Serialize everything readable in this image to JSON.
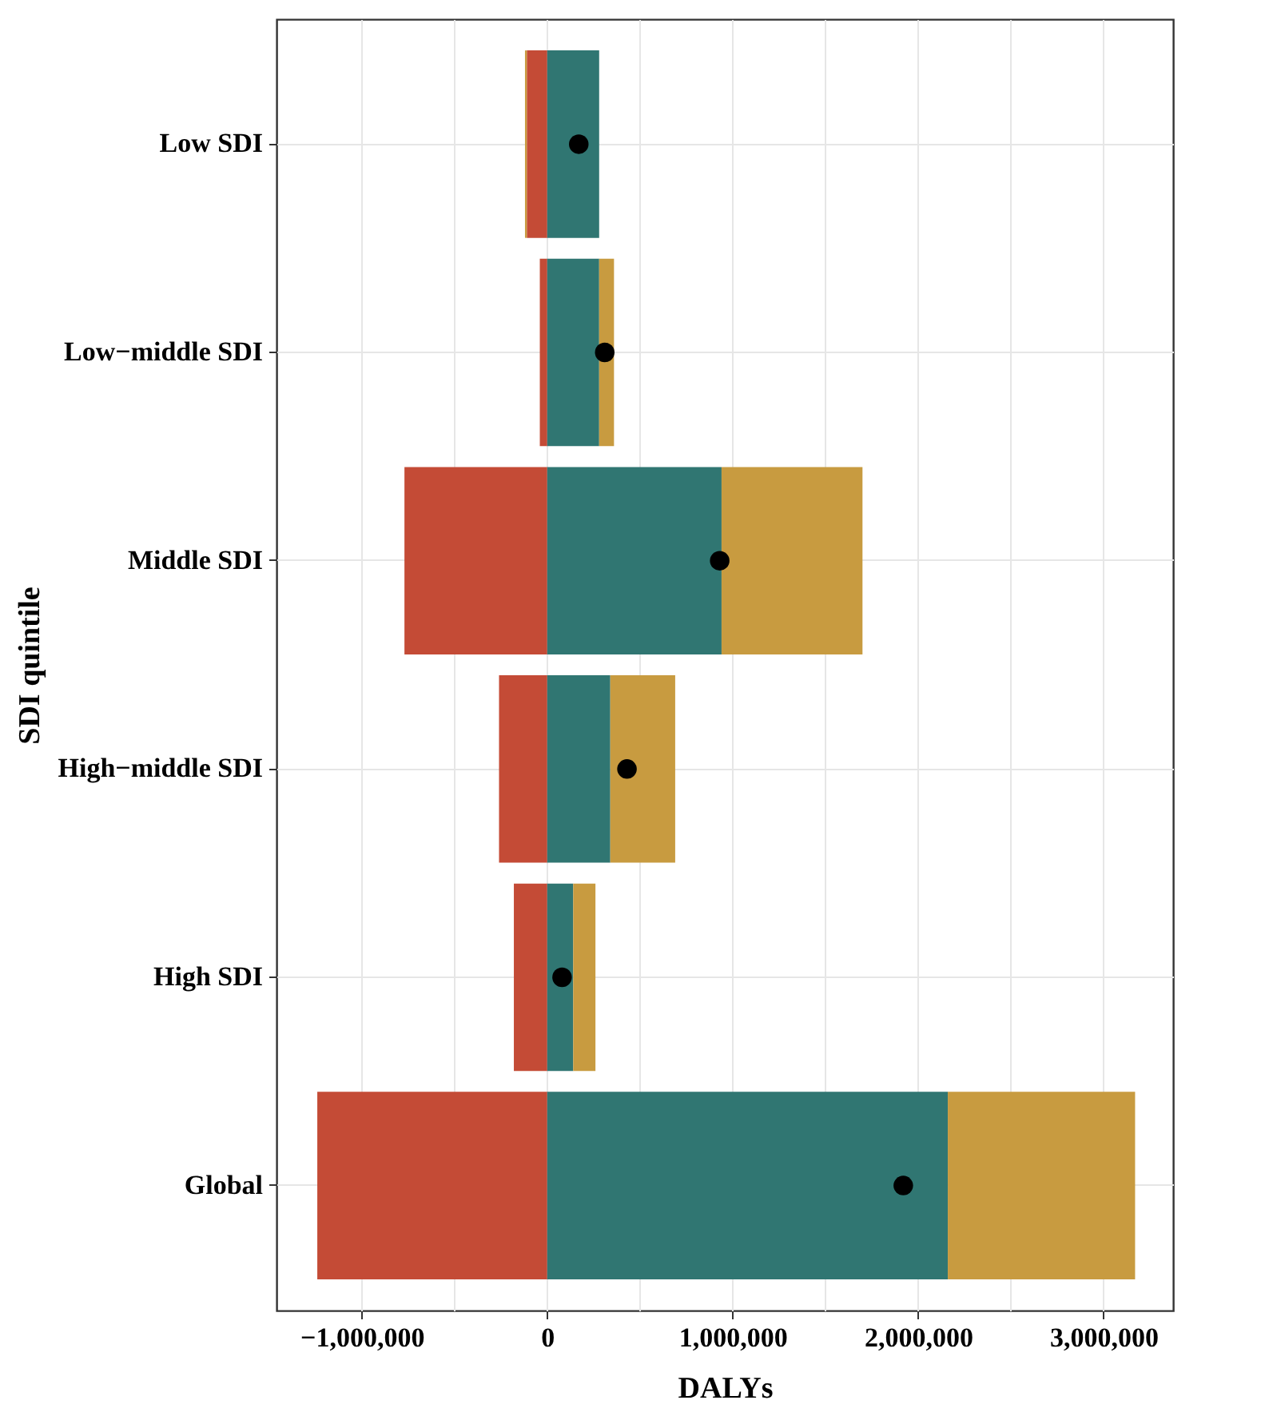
{
  "chart_data": {
    "type": "bar",
    "orientation": "horizontal",
    "stacked": true,
    "xlabel": "DALYs",
    "ylabel": "SDI quintile",
    "categories": [
      "Low SDI",
      "Low−middle SDI",
      "Middle SDI",
      "High−middle SDI",
      "High SDI",
      "Global"
    ],
    "series": [
      {
        "color": "#c44b36",
        "values": [
          -110000,
          -40000,
          -770000,
          -260000,
          -180000,
          -1240000
        ]
      },
      {
        "color": "#307672",
        "values": [
          280000,
          280000,
          940000,
          340000,
          140000,
          2160000
        ]
      },
      {
        "color": "#c89b40",
        "values": [
          -10000,
          80000,
          760000,
          350000,
          120000,
          1010000
        ]
      },
      {
        "type": "scatter",
        "color": "#000000",
        "marker": "circle",
        "x": [
          "Low SDI",
          "Low−middle SDI",
          "Middle SDI",
          "High−middle SDI",
          "High SDI",
          "Global"
        ],
        "values": [
          170000,
          310000,
          930000,
          430000,
          80000,
          1920000
        ]
      }
    ],
    "xlim": [
      -1460000,
      3375000
    ],
    "xticks": [
      {
        "value": -1000000,
        "label": "−1,000,000"
      },
      {
        "value": -500000,
        "label": null
      },
      {
        "value": 0,
        "label": "0"
      },
      {
        "value": 500000,
        "label": null
      },
      {
        "value": 1000000,
        "label": "1,000,000"
      },
      {
        "value": 1500000,
        "label": null
      },
      {
        "value": 2000000,
        "label": "2,000,000"
      },
      {
        "value": 2500000,
        "label": null
      },
      {
        "value": 3000000,
        "label": "3,000,000"
      }
    ],
    "grid": true
  }
}
